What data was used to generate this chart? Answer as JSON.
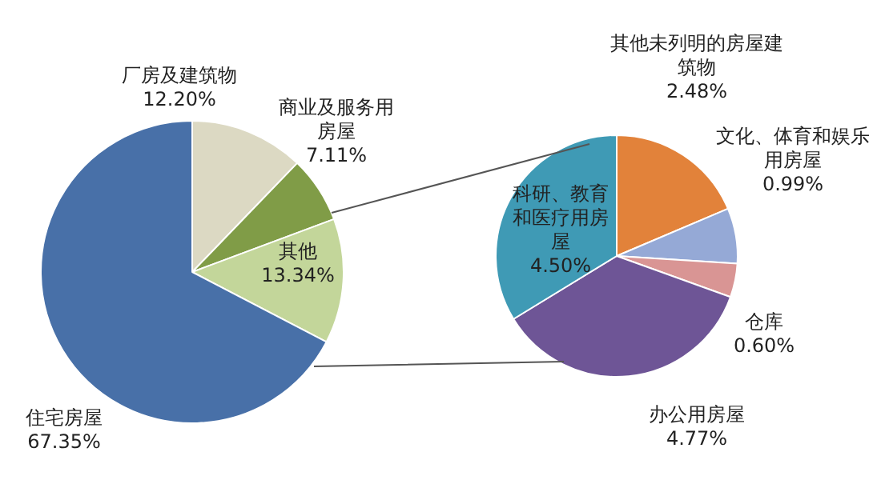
{
  "chart_data": [
    {
      "type": "pie",
      "categories": [
        "厂房及建筑物",
        "商业及服务用房屋",
        "其他",
        "住宅房屋"
      ],
      "values": [
        12.2,
        7.11,
        13.34,
        67.35
      ],
      "colors": [
        "#dcd9c3",
        "#809c47",
        "#c3d69a",
        "#4870a8"
      ],
      "value_labels": [
        "12.20%",
        "7.11%",
        "13.34%",
        "67.35%"
      ],
      "legend": false
    },
    {
      "type": "pie",
      "categories": [
        "其他未列明的房屋建筑物",
        "文化、体育和娱乐用房屋",
        "仓库",
        "办公用房屋",
        "科研、教育和医疗用房屋"
      ],
      "values": [
        2.48,
        0.99,
        0.6,
        4.77,
        4.5
      ],
      "colors": [
        "#e2823a",
        "#95a9d6",
        "#d99594",
        "#6e5596",
        "#3f9ab5"
      ],
      "value_labels": [
        "2.48%",
        "0.99%",
        "0.60%",
        "4.77%",
        "4.50%"
      ],
      "legend": false
    }
  ]
}
